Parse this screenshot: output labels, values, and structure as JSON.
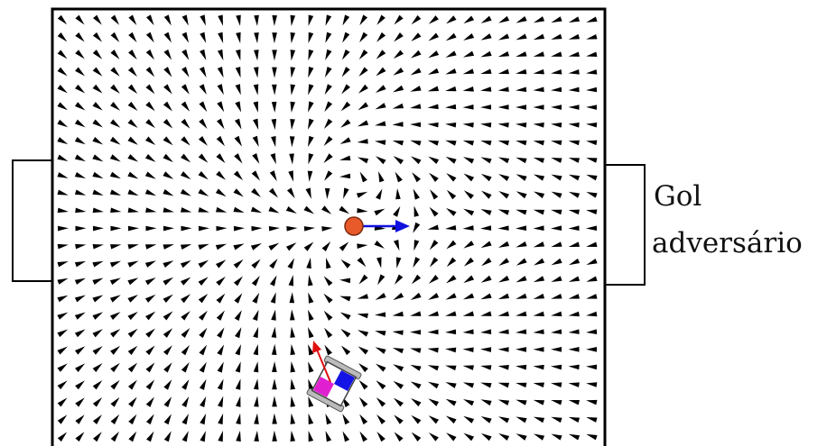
{
  "goal_label": {
    "lines": [
      "Gol",
      "adversário"
    ]
  }
}
